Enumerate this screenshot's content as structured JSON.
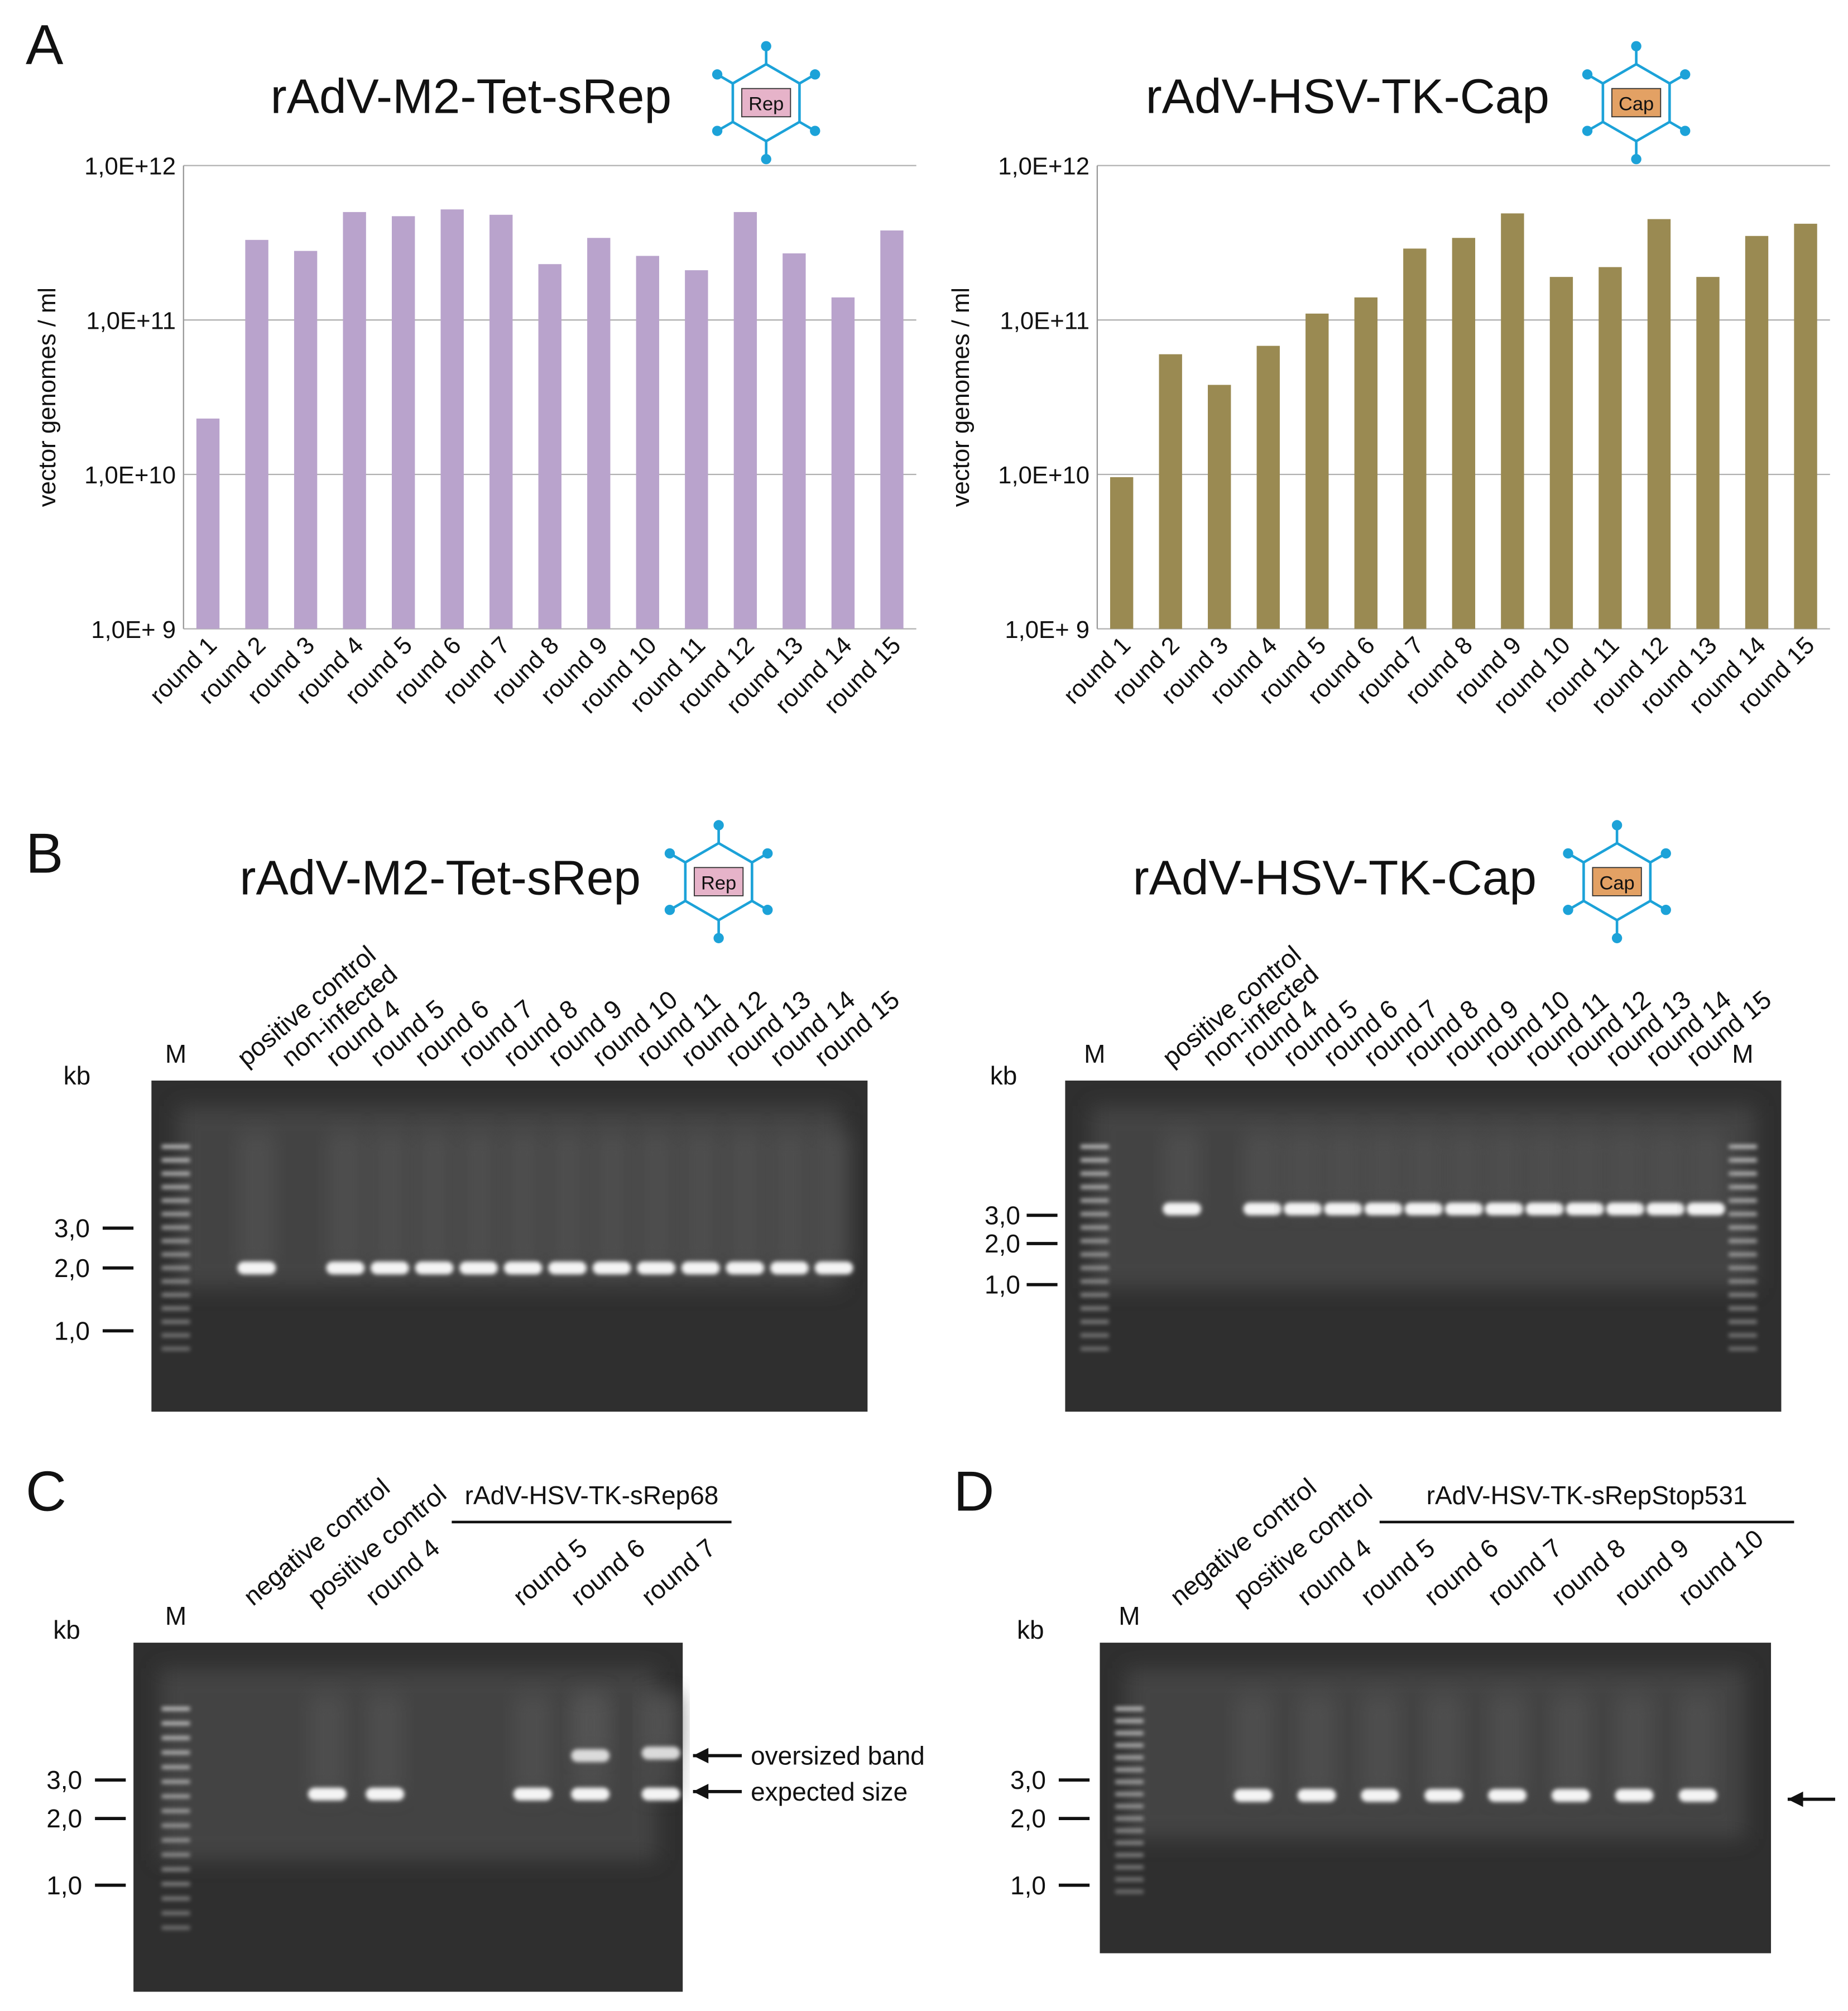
{
  "panel_labels": [
    "A",
    "B",
    "C",
    "D"
  ],
  "chart_data": [
    {
      "type": "bar",
      "title": "rAdV-M2-Tet-sRep",
      "icon_label": "Rep",
      "icon_color": "#e6b3c9",
      "ylabel": "vector genomes / ml",
      "categories": [
        "round 1",
        "round 2",
        "round 3",
        "round 4",
        "round 5",
        "round 6",
        "round 7",
        "round 8",
        "round 9",
        "round 10",
        "round 11",
        "round 12",
        "round 13",
        "round 14",
        "round 15"
      ],
      "values": [
        23000000000.0,
        330000000000.0,
        280000000000.0,
        500000000000.0,
        470000000000.0,
        520000000000.0,
        480000000000.0,
        230000000000.0,
        340000000000.0,
        260000000000.0,
        210000000000.0,
        500000000000.0,
        270000000000.0,
        140000000000.0,
        380000000000.0
      ],
      "color": "#b9a3cc",
      "log_scale": true,
      "grid": true,
      "ylim": [
        1000000000.0,
        1000000000000.0
      ],
      "yticks": [
        {
          "value": 1000000000.0,
          "label": "1,0E+ 9"
        },
        {
          "value": 10000000000.0,
          "label": "1,0E+10"
        },
        {
          "value": 100000000000.0,
          "label": "1,0E+11"
        },
        {
          "value": 1000000000000.0,
          "label": "1,0E+12"
        }
      ]
    },
    {
      "type": "bar",
      "title": "rAdV-HSV-TK-Cap",
      "icon_label": "Cap",
      "icon_color": "#e3a164",
      "ylabel": "vector genomes / ml",
      "categories": [
        "round 1",
        "round 2",
        "round 3",
        "round 4",
        "round 5",
        "round 6",
        "round 7",
        "round 8",
        "round 9",
        "round 10",
        "round 11",
        "round 12",
        "round 13",
        "round 14",
        "round 15"
      ],
      "values": [
        9600000000.0,
        60000000000.0,
        38000000000.0,
        68000000000.0,
        110000000000.0,
        140000000000.0,
        290000000000.0,
        340000000000.0,
        490000000000.0,
        190000000000.0,
        220000000000.0,
        450000000000.0,
        190000000000.0,
        350000000000.0,
        420000000000.0
      ],
      "color": "#9a8a52",
      "log_scale": true,
      "grid": true,
      "ylim": [
        1000000000.0,
        1000000000000.0
      ],
      "yticks": [
        {
          "value": 1000000000.0,
          "label": "1,0E+ 9"
        },
        {
          "value": 10000000000.0,
          "label": "1,0E+10"
        },
        {
          "value": 100000000000.0,
          "label": "1,0E+11"
        },
        {
          "value": 1000000000000.0,
          "label": "1,0E+12"
        }
      ]
    }
  ],
  "gels": [
    {
      "title": "rAdV-M2-Tet-sRep",
      "icon_label": "Rep",
      "icon_color": "#e6b3c9",
      "ladder": "M",
      "unit": "kb",
      "lanes": [
        "positive control",
        "non-infected",
        "round 4",
        "round 5",
        "round 6",
        "round 7",
        "round 8",
        "round 9",
        "round 10",
        "round 11",
        "round 12",
        "round 13",
        "round 14",
        "round 15"
      ],
      "sizes": [
        "3,0",
        "2,0",
        "1,0"
      ]
    },
    {
      "title": "rAdV-HSV-TK-Cap",
      "icon_label": "Cap",
      "icon_color": "#e3a164",
      "ladder": "M",
      "unit": "kb",
      "lanes": [
        "positive control",
        "non-infected",
        "round 4",
        "round 5",
        "round 6",
        "round 7",
        "round 8",
        "round 9",
        "round 10",
        "round 11",
        "round 12",
        "round 13",
        "round 14",
        "round 15"
      ],
      "sizes": [
        "3,0",
        "2,0",
        "1,0"
      ]
    },
    {
      "ladder": "M",
      "unit": "kb",
      "bracket": "rAdV-HSV-TK-sRep68",
      "lanes": [
        "negative control",
        "positive control",
        "round 4",
        "round 5",
        "round 6",
        "round 7"
      ],
      "sizes": [
        "3,0",
        "2,0",
        "1,0"
      ],
      "annotations": [
        "oversized band",
        "expected size"
      ]
    },
    {
      "ladder": "M",
      "unit": "kb",
      "bracket": "rAdV-HSV-TK-sRepStop531",
      "lanes": [
        "negative control",
        "positive control",
        "round 4",
        "round 5",
        "round 6",
        "round 7",
        "round 8",
        "round 9",
        "round 10"
      ],
      "sizes": [
        "3,0",
        "2,0",
        "1,0"
      ]
    }
  ]
}
